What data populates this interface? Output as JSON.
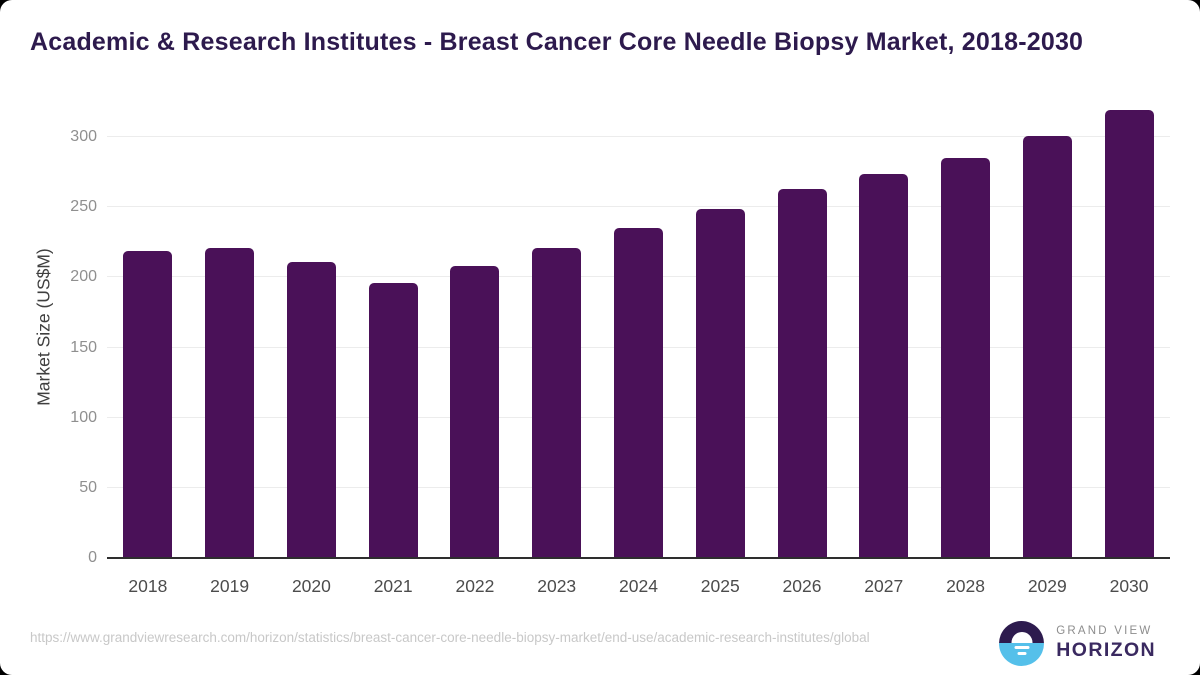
{
  "window": {
    "background": "#000000"
  },
  "card": {
    "background": "#ffffff"
  },
  "header": {
    "title": "Academic & Research Institutes - Breast Cancer Core Needle Biopsy Market, 2018-2030",
    "title_color": "#2d1a4d"
  },
  "chart_data": {
    "type": "bar",
    "title": "Academic & Research Institutes - Breast Cancer Core Needle Biopsy Market, 2018-2030",
    "categories": [
      "2018",
      "2019",
      "2020",
      "2021",
      "2022",
      "2023",
      "2024",
      "2025",
      "2026",
      "2027",
      "2028",
      "2029",
      "2030"
    ],
    "values": [
      219,
      221,
      211,
      196,
      208,
      221,
      235,
      249,
      263,
      274,
      285,
      301,
      319
    ],
    "xlabel": "",
    "ylabel": "Market Size (US$M)",
    "ylim": [
      0,
      330
    ],
    "yticks": [
      0,
      50,
      100,
      150,
      200,
      250,
      300
    ],
    "grid": true,
    "legend_position": "none",
    "bar_color": "#4a1158",
    "gridline_color": "#ececec",
    "axis_line_color": "#2e2e2e",
    "ytick_color": "#8f8f8f",
    "xtick_color": "#4c4c4c"
  },
  "footer": {
    "source_url": "https://www.grandviewresearch.com/horizon/statistics/breast-cancer-core-needle-biopsy-market/end-use/academic-research-institutes/global",
    "logo": {
      "icon": "horizon-sunrise-icon",
      "top_text": "GRAND VIEW",
      "bottom_text": "HORIZON",
      "dark_color": "#2d1b4e",
      "blue_color": "#55c0ea"
    }
  }
}
